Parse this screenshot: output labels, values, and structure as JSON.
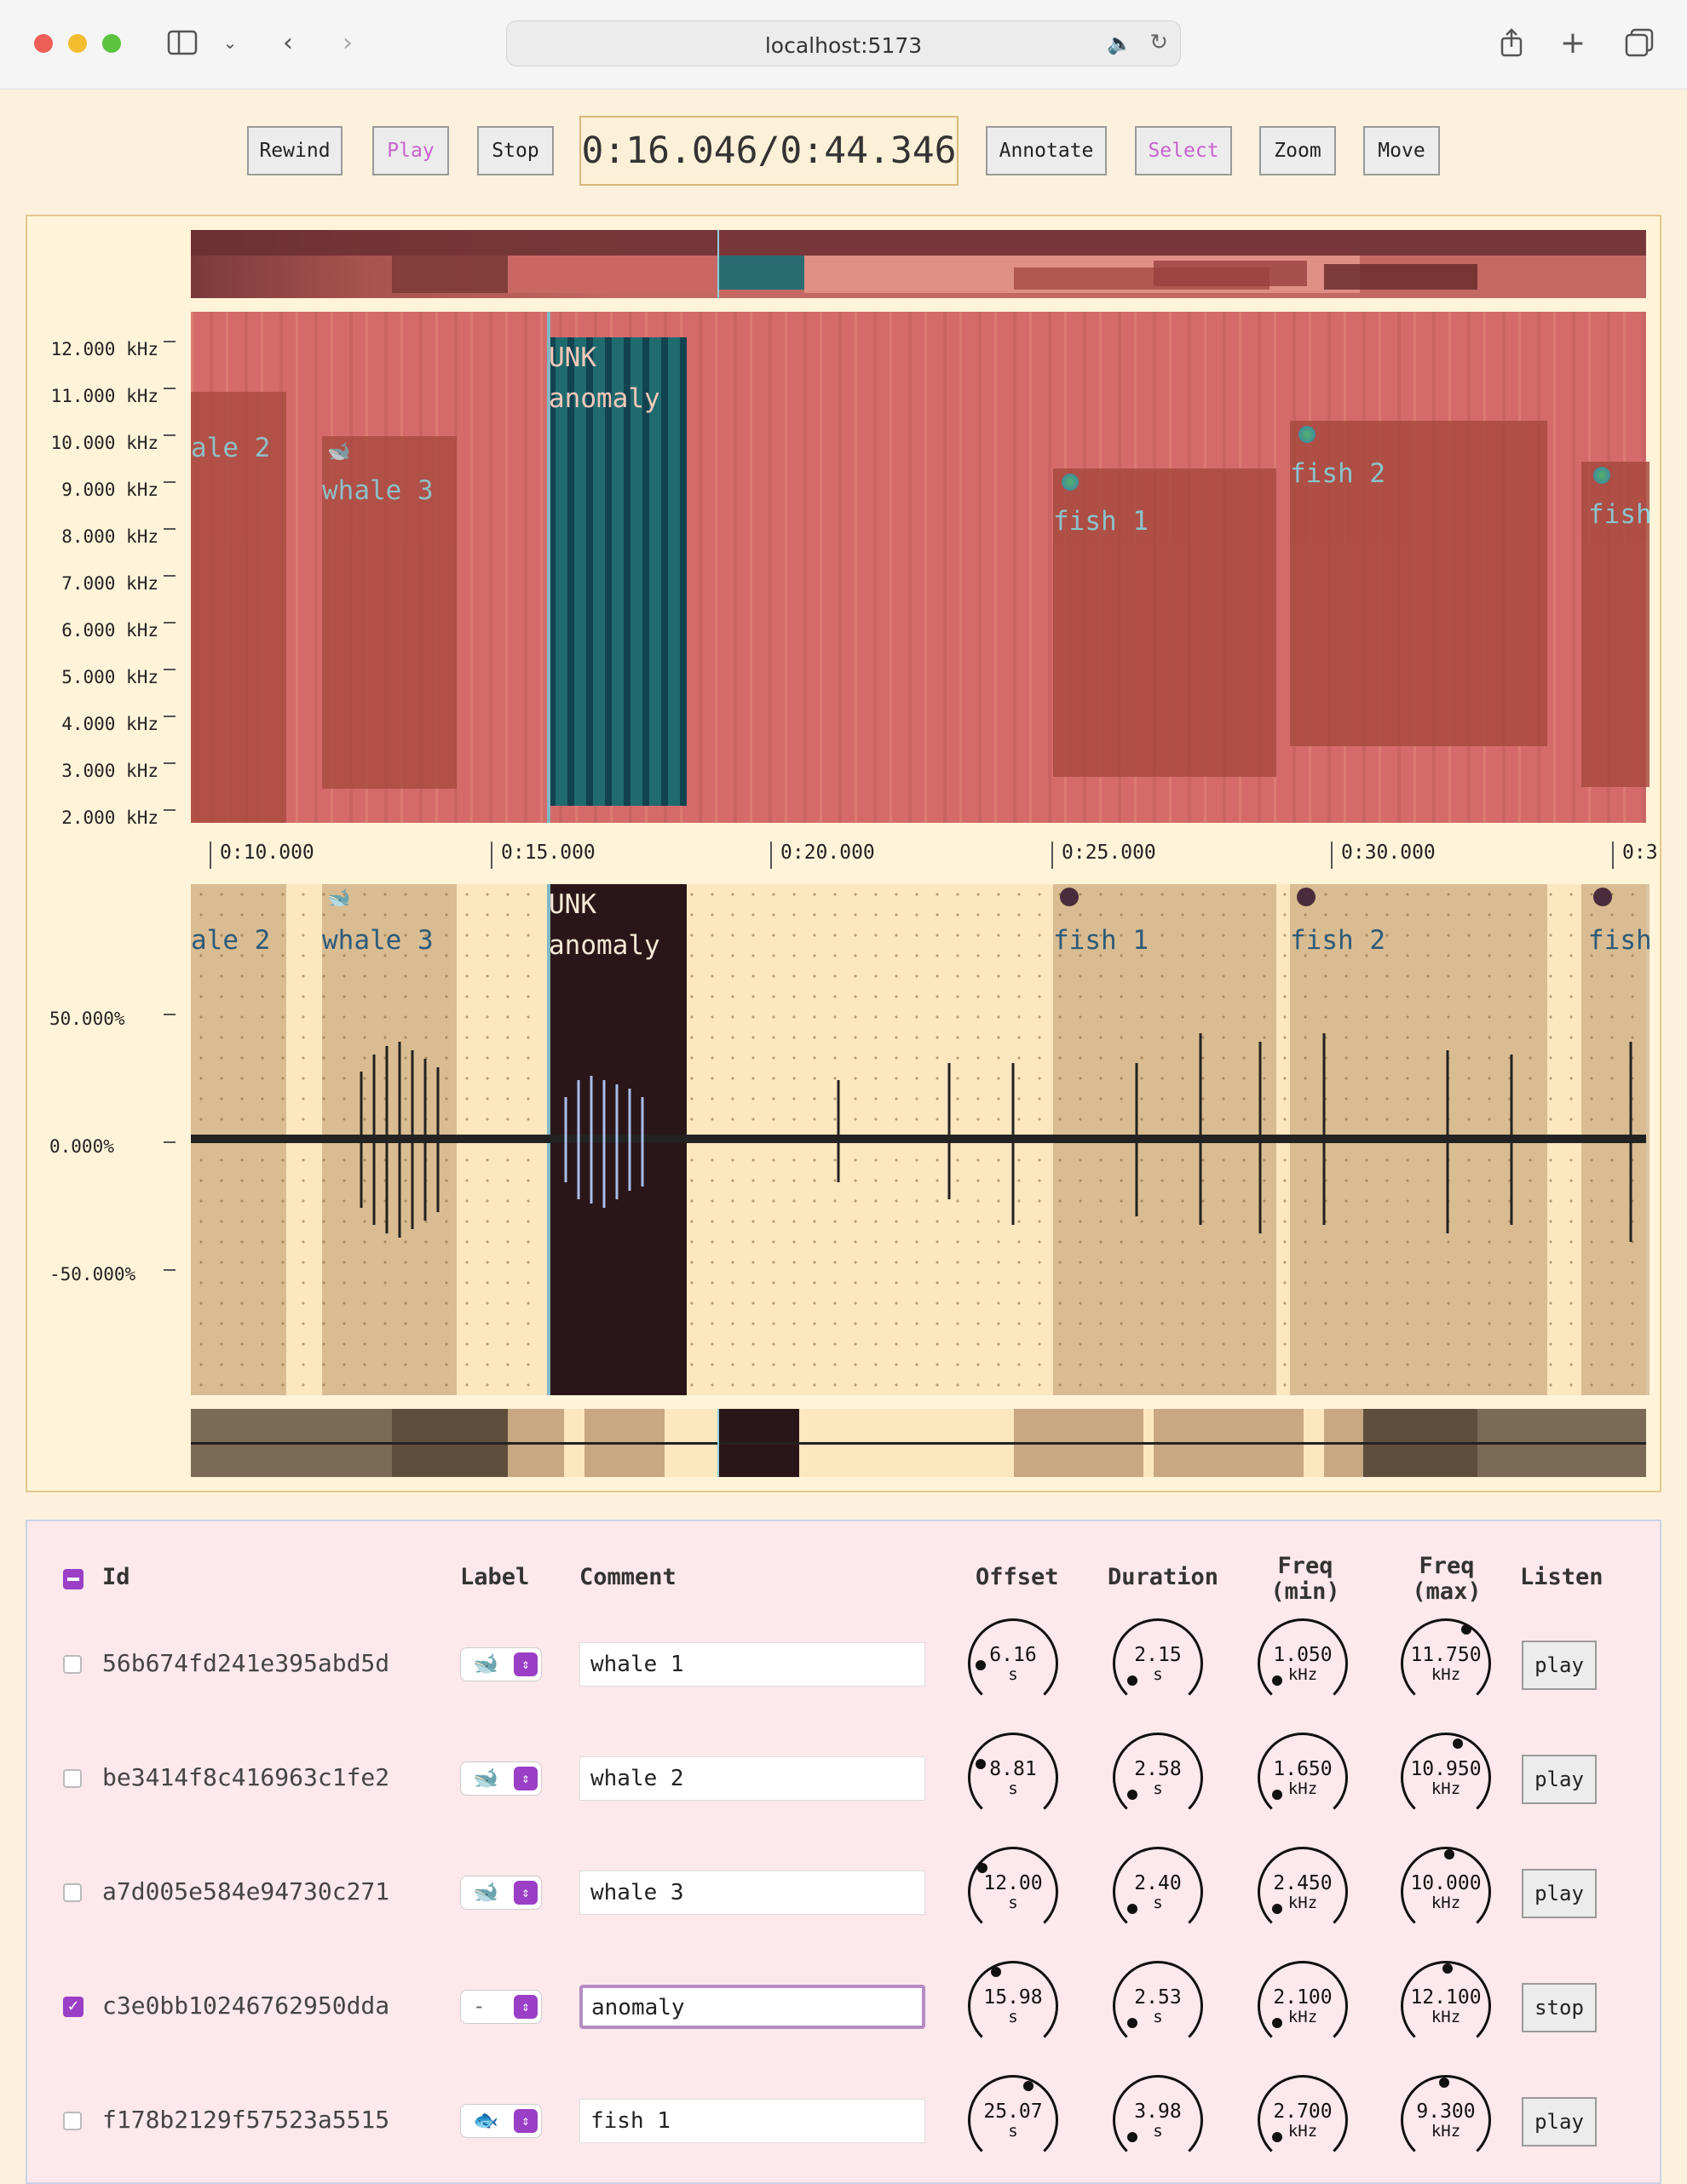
{
  "browser": {
    "url": "localhost:5173"
  },
  "toolbar": {
    "rewind": "Rewind",
    "play": "Play",
    "stop": "Stop",
    "time": "0:16.046/0:44.346",
    "annotate": "Annotate",
    "select": "Select",
    "zoom": "Zoom",
    "move": "Move"
  },
  "spectrogram": {
    "y_ticks": [
      "12.000 kHz",
      "11.000 kHz",
      "10.000 kHz",
      "9.000 kHz",
      "8.000 kHz",
      "7.000 kHz",
      "6.000 kHz",
      "5.000 kHz",
      "4.000 kHz",
      "3.000 kHz",
      "2.000 kHz"
    ],
    "x_ticks": [
      "0:10.000",
      "0:15.000",
      "0:20.000",
      "0:25.000",
      "0:30.000",
      "0:3"
    ],
    "annotations": [
      {
        "line1": "",
        "line2": "ale 2"
      },
      {
        "line1": "",
        "line2": "whale 3"
      },
      {
        "line1": "UNK",
        "line2": "anomaly"
      },
      {
        "line1": "",
        "line2": "fish 1"
      },
      {
        "line1": "",
        "line2": "fish 2"
      },
      {
        "line1": "",
        "line2": "fish"
      }
    ]
  },
  "waveform": {
    "y_ticks": [
      "50.000%",
      "0.000%",
      "-50.000%"
    ],
    "annotations": [
      {
        "line1": "",
        "line2": "ale 2"
      },
      {
        "line1": "",
        "line2": "whale 3"
      },
      {
        "line1": "UNK",
        "line2": "anomaly"
      },
      {
        "line1": "",
        "line2": "fish 1"
      },
      {
        "line1": "",
        "line2": "fish 2"
      },
      {
        "line1": "",
        "line2": "fish"
      }
    ]
  },
  "table": {
    "headers": {
      "id": "Id",
      "label": "Label",
      "comment": "Comment",
      "offset": "Offset",
      "duration": "Duration",
      "freq_min_1": "Freq",
      "freq_min_2": "(min)",
      "freq_max_1": "Freq",
      "freq_max_2": "(max)",
      "listen": "Listen"
    },
    "rows": [
      {
        "id": "56b674fd241e395abd5d",
        "label": "whale",
        "checked": false,
        "comment": "whale 1",
        "offset": "6.16",
        "offset_unit": "s",
        "duration": "2.15",
        "duration_unit": "s",
        "fmin": "1.050",
        "fmin_unit": "kHz",
        "fmax": "11.750",
        "fmax_unit": "kHz",
        "listen": "play"
      },
      {
        "id": "be3414f8c416963c1fe2",
        "label": "whale",
        "checked": false,
        "comment": "whale 2",
        "offset": "8.81",
        "offset_unit": "s",
        "duration": "2.58",
        "duration_unit": "s",
        "fmin": "1.650",
        "fmin_unit": "kHz",
        "fmax": "10.950",
        "fmax_unit": "kHz",
        "listen": "play"
      },
      {
        "id": "a7d005e584e94730c271",
        "label": "whale",
        "checked": false,
        "comment": "whale 3",
        "offset": "12.00",
        "offset_unit": "s",
        "duration": "2.40",
        "duration_unit": "s",
        "fmin": "2.450",
        "fmin_unit": "kHz",
        "fmax": "10.000",
        "fmax_unit": "kHz",
        "listen": "play"
      },
      {
        "id": "c3e0bb10246762950dda",
        "label": "-",
        "checked": true,
        "comment": "anomaly",
        "offset": "15.98",
        "offset_unit": "s",
        "duration": "2.53",
        "duration_unit": "s",
        "fmin": "2.100",
        "fmin_unit": "kHz",
        "fmax": "12.100",
        "fmax_unit": "kHz",
        "listen": "stop"
      },
      {
        "id": "f178b2129f57523a5515",
        "label": "fish",
        "checked": false,
        "comment": "fish 1",
        "offset": "25.07",
        "offset_unit": "s",
        "duration": "3.98",
        "duration_unit": "s",
        "fmin": "2.700",
        "fmin_unit": "kHz",
        "fmax": "9.300",
        "fmax_unit": "kHz",
        "listen": "play"
      }
    ]
  }
}
